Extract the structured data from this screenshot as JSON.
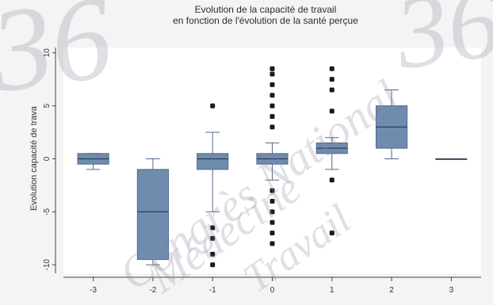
{
  "chart_data": {
    "type": "boxplot",
    "title": [
      "Evolution de la capacité de travail",
      "en fonction de l'évolution de la santé perçue"
    ],
    "xlabel": "",
    "ylabel": "Evolution capacité de trava",
    "x_tick_labels": [
      "-3",
      "-2",
      "-1",
      "0",
      "1",
      "2",
      "3"
    ],
    "y_tick_labels": [
      "-10",
      "-5",
      "0",
      "5",
      "10"
    ],
    "y_ticks": [
      -10,
      -5,
      0,
      5,
      10
    ],
    "ylim": [
      -10.8,
      10.5
    ],
    "grid": false,
    "box_color": "#6f8cae",
    "outlier_color": "#1a1a1a",
    "groups": [
      {
        "x": "-3",
        "whisker_low": -1,
        "q1": -0.5,
        "median": 0,
        "q3": 0.5,
        "whisker_high": 0.5,
        "outliers": []
      },
      {
        "x": "-2",
        "whisker_low": -10,
        "q1": -9.5,
        "median": -5,
        "q3": -1,
        "whisker_high": 0,
        "outliers": []
      },
      {
        "x": "-1",
        "whisker_low": -5,
        "q1": -1,
        "median": 0,
        "q3": 0.5,
        "whisker_high": 2.5,
        "outliers": [
          5,
          -6.5,
          -7.5,
          -9,
          -10
        ]
      },
      {
        "x": "0",
        "whisker_low": -2,
        "q1": -0.5,
        "median": 0,
        "q3": 0.5,
        "whisker_high": 1.5,
        "outliers": [
          8.5,
          8,
          7,
          6,
          5,
          4,
          3,
          -3,
          -4,
          -5,
          -6,
          -7,
          -8
        ]
      },
      {
        "x": "1",
        "whisker_low": -1,
        "q1": 0.5,
        "median": 1,
        "q3": 1.5,
        "whisker_high": 2,
        "outliers": [
          8.5,
          7.5,
          6.5,
          4.5,
          -2,
          -7
        ]
      },
      {
        "x": "2",
        "whisker_low": 0,
        "q1": 1,
        "median": 3,
        "q3": 5,
        "whisker_high": 6.5,
        "outliers": []
      },
      {
        "x": "3",
        "whisker_low": 0,
        "q1": 0,
        "median": 0,
        "q3": 0,
        "whisker_high": 0,
        "outliers": []
      }
    ]
  },
  "watermark": {
    "line1": "Congrès National",
    "line2": "Médecine",
    "line3": "Travail",
    "number": "36"
  }
}
